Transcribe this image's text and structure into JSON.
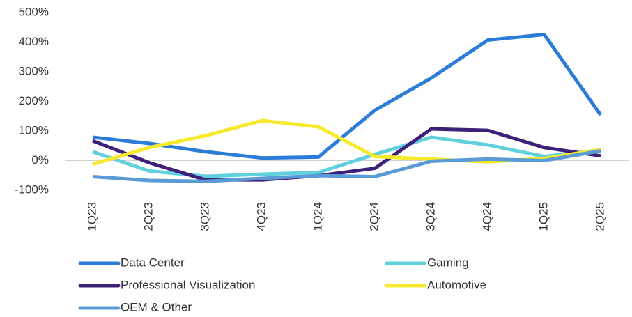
{
  "chart_data": {
    "type": "line",
    "categories": [
      "1Q23",
      "2Q23",
      "3Q23",
      "4Q23",
      "1Q24",
      "2Q24",
      "3Q24",
      "4Q24",
      "1Q25",
      "2Q25"
    ],
    "series": [
      {
        "name": "Data Center",
        "color": "#2b7bd9",
        "values": [
          79,
          58,
          30,
          9,
          12,
          170,
          279,
          407,
          426,
          154
        ]
      },
      {
        "name": "Gaming",
        "color": "#5fd0dc",
        "values": [
          30,
          -35,
          -53,
          -46,
          -40,
          21,
          79,
          53,
          14,
          35
        ]
      },
      {
        "name": "Professional Visualization",
        "color": "#3e1f7a",
        "values": [
          67,
          -7,
          -65,
          -65,
          -51,
          -26,
          107,
          102,
          44,
          16
        ]
      },
      {
        "name": "Automotive",
        "color": "#f7ea2a",
        "values": [
          -12,
          44,
          84,
          135,
          114,
          14,
          5,
          -4,
          7,
          37
        ]
      },
      {
        "name": "OEM & Other",
        "color": "#5b9bd5",
        "values": [
          -54,
          -67,
          -70,
          -60,
          -51,
          -54,
          -2,
          5,
          0,
          33
        ]
      }
    ],
    "ylim": [
      -100,
      500
    ],
    "yticks": [
      {
        "value": -100,
        "label": "-100%"
      },
      {
        "value": 0,
        "label": "0%"
      },
      {
        "value": 100,
        "label": "100%"
      },
      {
        "value": 200,
        "label": "200%"
      },
      {
        "value": 300,
        "label": "300%"
      },
      {
        "value": 400,
        "label": "400%"
      },
      {
        "value": 500,
        "label": "500%"
      }
    ],
    "grid": false,
    "legend": "bottom"
  }
}
